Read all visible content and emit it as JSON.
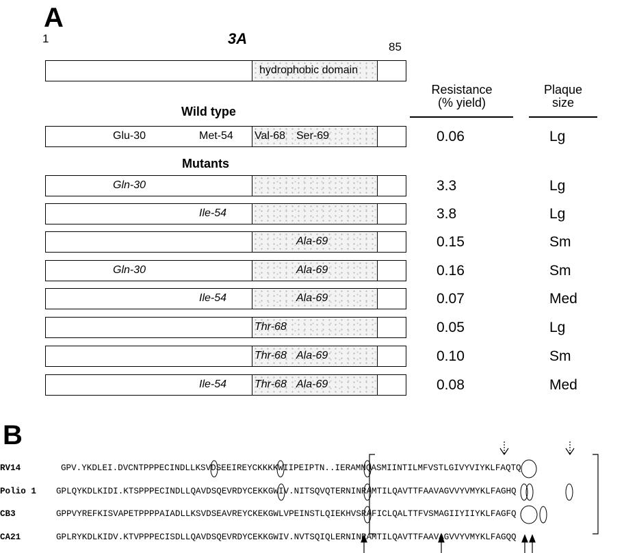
{
  "panel_a": {
    "letter": "A",
    "start": "1",
    "end": "85",
    "protein": "3A",
    "domain_label": "hydrophobic domain",
    "wild_type_heading": "Wild type",
    "mutants_heading": "Mutants",
    "col_resistance": "Resistance\n(% yield)",
    "col_plaque": "Plaque\nsize",
    "wild_type": {
      "labels": [
        "Glu-30",
        "Met-54",
        "Val-68",
        "Ser-69"
      ],
      "resistance": "0.06",
      "plaque": "Lg"
    },
    "mutants": [
      {
        "gln30": "Gln-30",
        "ile54": "",
        "thr68": "",
        "ala69": "",
        "resistance": "3.3",
        "plaque": "Lg"
      },
      {
        "gln30": "",
        "ile54": "Ile-54",
        "thr68": "",
        "ala69": "",
        "resistance": "3.8",
        "plaque": "Lg"
      },
      {
        "gln30": "",
        "ile54": "",
        "thr68": "",
        "ala69": "Ala-69",
        "resistance": "0.15",
        "plaque": "Sm"
      },
      {
        "gln30": "Gln-30",
        "ile54": "",
        "thr68": "",
        "ala69": "Ala-69",
        "resistance": "0.16",
        "plaque": "Sm"
      },
      {
        "gln30": "",
        "ile54": "Ile-54",
        "thr68": "",
        "ala69": "Ala-69",
        "resistance": "0.07",
        "plaque": "Med"
      },
      {
        "gln30": "",
        "ile54": "",
        "thr68": "Thr-68",
        "ala69": "",
        "resistance": "0.05",
        "plaque": "Lg"
      },
      {
        "gln30": "",
        "ile54": "",
        "thr68": "Thr-68",
        "ala69": "Ala-69",
        "resistance": "0.10",
        "plaque": "Sm"
      },
      {
        "gln30": "",
        "ile54": "Ile-54",
        "thr68": "Thr-68",
        "ala69": "Ala-69",
        "resistance": "0.08",
        "plaque": "Med"
      }
    ]
  },
  "panel_b": {
    "letter": "B",
    "sequences": [
      {
        "name": "RV14",
        "seq": "GPV.YKDLEI.DVCNTPPPECINDLLKSVDSEEIREYCKKKKWIIPEIPTN..IERAMNQASMIINTILMFVSTLGIVYVIYKLFAQTQ"
      },
      {
        "name": "Polio 1",
        "seq": "GPLQYKDLKIDI.KTSPPPECINDLLQAVDSQEVRDYCEKKGWIV.NITSQVQTERNINRAMTILQAVTTFAAVAGVVYVMYKLFAGHQ"
      },
      {
        "name": "CB3",
        "seq": "GPPVYREFKISVAPETPPPPAIADLLKSVDSEAVREYCKEKGWLVPEINSTLQIEKHVSRAFICLQALTTFVSMAGIIYIIYKLFAGFQ"
      },
      {
        "name": "CA21",
        "seq": "GPLRYKDLKIDV.KTVPPPECISDLLQAVDSQEVRDYCEKKGWIV.NVTSQIQLERNINRAMTILQAVTTFAAVAGVVYVMYKLFAGQQ"
      }
    ]
  }
}
